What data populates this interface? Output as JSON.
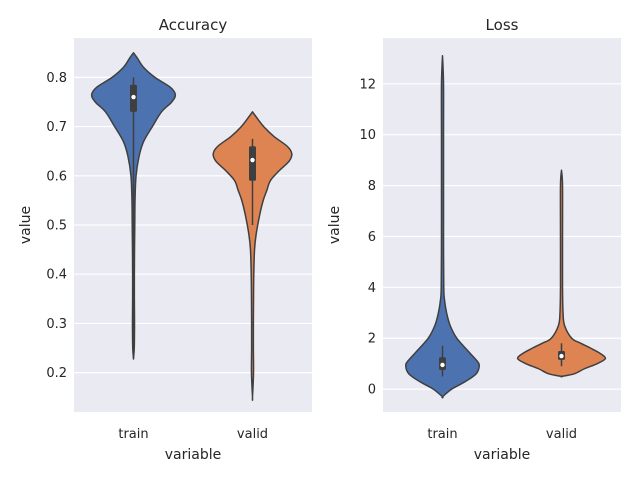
{
  "chart_data": [
    {
      "type": "violin",
      "title": "Accuracy",
      "xlabel": "variable",
      "ylabel": "value",
      "categories": [
        "train",
        "valid"
      ],
      "ylim": [
        0.12,
        0.88
      ],
      "yticks": [
        0.2,
        0.3,
        0.4,
        0.5,
        0.6,
        0.7,
        0.8
      ],
      "ytick_labels": [
        "0.2",
        "0.3",
        "0.4",
        "0.5",
        "0.6",
        "0.7",
        "0.8"
      ],
      "grid": true,
      "violins": [
        {
          "category": "train",
          "color": "#4c72b0",
          "min": 0.23,
          "q1": 0.73,
          "median": 0.76,
          "q3": 0.785,
          "max": 0.8,
          "profile": [
            [
              0.85,
              0.0
            ],
            [
              0.84,
              0.07
            ],
            [
              0.82,
              0.2
            ],
            [
              0.8,
              0.42
            ],
            [
              0.78,
              0.72
            ],
            [
              0.765,
              0.82
            ],
            [
              0.75,
              0.75
            ],
            [
              0.73,
              0.55
            ],
            [
              0.7,
              0.37
            ],
            [
              0.67,
              0.2
            ],
            [
              0.64,
              0.11
            ],
            [
              0.6,
              0.05
            ],
            [
              0.55,
              0.03
            ],
            [
              0.5,
              0.025
            ],
            [
              0.45,
              0.02
            ],
            [
              0.4,
              0.017
            ],
            [
              0.35,
              0.017
            ],
            [
              0.3,
              0.02
            ],
            [
              0.25,
              0.015
            ],
            [
              0.23,
              0.0
            ]
          ]
        },
        {
          "category": "valid",
          "color": "#dd8452",
          "min": 0.5,
          "q1": 0.59,
          "median": 0.632,
          "q3": 0.66,
          "max": 0.675,
          "profile": [
            [
              0.73,
              0.0
            ],
            [
              0.72,
              0.07
            ],
            [
              0.7,
              0.22
            ],
            [
              0.68,
              0.42
            ],
            [
              0.66,
              0.68
            ],
            [
              0.645,
              0.77
            ],
            [
              0.63,
              0.72
            ],
            [
              0.61,
              0.52
            ],
            [
              0.59,
              0.35
            ],
            [
              0.57,
              0.28
            ],
            [
              0.55,
              0.21
            ],
            [
              0.52,
              0.14
            ],
            [
              0.48,
              0.07
            ],
            [
              0.45,
              0.04
            ],
            [
              0.4,
              0.025
            ],
            [
              0.35,
              0.02
            ],
            [
              0.3,
              0.017
            ],
            [
              0.25,
              0.017
            ],
            [
              0.2,
              0.02
            ],
            [
              0.15,
              0.0
            ]
          ]
        }
      ]
    },
    {
      "type": "violin",
      "title": "Loss",
      "xlabel": "variable",
      "ylabel": "value",
      "categories": [
        "train",
        "valid"
      ],
      "ylim": [
        -0.9,
        13.8
      ],
      "yticks": [
        0,
        2,
        4,
        6,
        8,
        10,
        12
      ],
      "ytick_labels": [
        "0",
        "2",
        "4",
        "6",
        "8",
        "10",
        "12"
      ],
      "grid": true,
      "violins": [
        {
          "category": "train",
          "color": "#4c72b0",
          "min": 0.5,
          "q1": 0.75,
          "median": 0.95,
          "q3": 1.25,
          "max": 1.7,
          "profile": [
            [
              13.1,
              0.0
            ],
            [
              12.0,
              0.02
            ],
            [
              10.0,
              0.02
            ],
            [
              8.0,
              0.02
            ],
            [
              6.0,
              0.02
            ],
            [
              4.0,
              0.025
            ],
            [
              3.5,
              0.04
            ],
            [
              3.0,
              0.08
            ],
            [
              2.5,
              0.15
            ],
            [
              2.0,
              0.28
            ],
            [
              1.5,
              0.5
            ],
            [
              1.1,
              0.68
            ],
            [
              0.9,
              0.72
            ],
            [
              0.6,
              0.66
            ],
            [
              0.3,
              0.45
            ],
            [
              0.0,
              0.18
            ],
            [
              -0.3,
              0.0
            ]
          ]
        },
        {
          "category": "valid",
          "color": "#dd8452",
          "min": 0.9,
          "q1": 1.15,
          "median": 1.3,
          "q3": 1.5,
          "max": 1.8,
          "profile": [
            [
              8.6,
              0.0
            ],
            [
              8.0,
              0.02
            ],
            [
              6.0,
              0.02
            ],
            [
              4.0,
              0.02
            ],
            [
              3.0,
              0.03
            ],
            [
              2.5,
              0.06
            ],
            [
              2.0,
              0.2
            ],
            [
              1.8,
              0.38
            ],
            [
              1.6,
              0.58
            ],
            [
              1.4,
              0.76
            ],
            [
              1.2,
              0.86
            ],
            [
              1.0,
              0.7
            ],
            [
              0.8,
              0.45
            ],
            [
              0.6,
              0.25
            ],
            [
              0.5,
              0.0
            ]
          ]
        }
      ]
    }
  ]
}
